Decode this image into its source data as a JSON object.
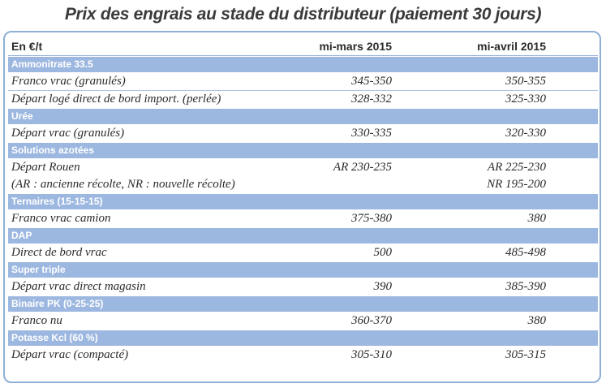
{
  "title": "Prix des engrais au stade du distributeur (paiement 30 jours)",
  "header": {
    "unit": "En €/t",
    "col1": "mi-mars 2015",
    "col2": "mi-avril 2015"
  },
  "sections": [
    {
      "name": "Ammonitrate 33.5",
      "rows": [
        {
          "label": "Franco vrac (granulés)",
          "march": "345-350",
          "april": "350-355"
        },
        {
          "label": "Départ logé direct de bord import. (perlée)",
          "march": "328-332",
          "april": "325-330"
        }
      ]
    },
    {
      "name": "Urée",
      "rows": [
        {
          "label": "Départ vrac (granulés)",
          "march": "330-335",
          "april": "320-330"
        }
      ]
    },
    {
      "name": "Solutions azotées",
      "rows": [
        {
          "label": "Départ Rouen",
          "march": "AR 230-235",
          "april": "AR 225-230"
        },
        {
          "label": "(AR : ancienne récolte, NR : nouvelle récolte)",
          "march": "",
          "april": "NR 195-200"
        }
      ]
    },
    {
      "name": "Ternaires (15-15-15)",
      "rows": [
        {
          "label": "Franco vrac camion",
          "march": "375-380",
          "april": "380"
        }
      ]
    },
    {
      "name": "DAP",
      "rows": [
        {
          "label": "Direct de bord vrac",
          "march": "500",
          "april": "485-498"
        }
      ]
    },
    {
      "name": "Super triple",
      "rows": [
        {
          "label": "Départ vrac direct magasin",
          "march": "390",
          "april": "385-390"
        }
      ]
    },
    {
      "name": "Binaire PK (0-25-25)",
      "rows": [
        {
          "label": "Franco nu",
          "march": "360-370",
          "april": "380"
        }
      ]
    },
    {
      "name": "Potasse Kcl (60 %)",
      "rows": [
        {
          "label": "Départ vrac (compacté)",
          "march": "305-310",
          "april": "305-315"
        }
      ]
    }
  ]
}
